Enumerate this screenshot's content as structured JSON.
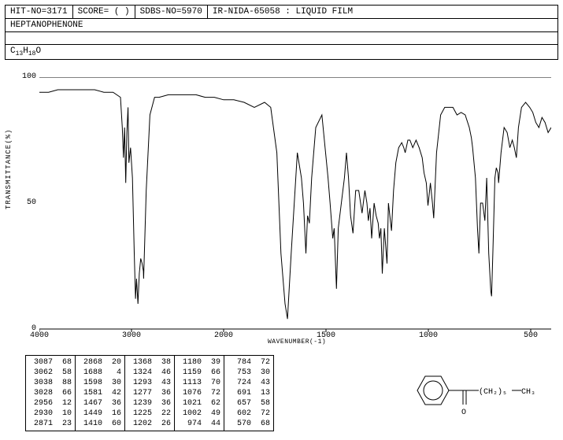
{
  "header": {
    "hit_no": "HIT-NO=3171",
    "score": "SCORE=  (  )",
    "sdbs_no": "SDBS-NO=5970",
    "ir_info": "IR-NIDA-65058 : LIQUID FILM"
  },
  "compound_name": "HEPTANOPHENONE",
  "formula": {
    "c": "13",
    "h": "18",
    "o": ""
  },
  "chart": {
    "type": "line",
    "ylabel": "TRANSMITTANCE(%)",
    "xlabel": "WAVENUMBER(-1)",
    "xlim": [
      4000,
      400
    ],
    "ylim": [
      0,
      100
    ],
    "yticks": [
      0,
      50,
      100
    ],
    "xticks": [
      4000,
      3000,
      2000,
      1500,
      1000,
      500
    ],
    "line_color": "#000000",
    "background_color": "#ffffff",
    "label_fontsize": 9,
    "tick_fontsize": 10,
    "spectrum": [
      [
        4000,
        94
      ],
      [
        3900,
        94
      ],
      [
        3800,
        95
      ],
      [
        3700,
        95
      ],
      [
        3600,
        95
      ],
      [
        3500,
        95
      ],
      [
        3400,
        95
      ],
      [
        3300,
        94
      ],
      [
        3200,
        94
      ],
      [
        3120,
        92
      ],
      [
        3100,
        80
      ],
      [
        3087,
        68
      ],
      [
        3075,
        80
      ],
      [
        3062,
        58
      ],
      [
        3050,
        78
      ],
      [
        3038,
        88
      ],
      [
        3028,
        66
      ],
      [
        3010,
        72
      ],
      [
        2990,
        60
      ],
      [
        2970,
        30
      ],
      [
        2956,
        12
      ],
      [
        2945,
        20
      ],
      [
        2930,
        10
      ],
      [
        2915,
        22
      ],
      [
        2900,
        28
      ],
      [
        2885,
        26
      ],
      [
        2871,
        23
      ],
      [
        2868,
        20
      ],
      [
        2840,
        55
      ],
      [
        2800,
        85
      ],
      [
        2750,
        92
      ],
      [
        2700,
        92
      ],
      [
        2600,
        93
      ],
      [
        2500,
        93
      ],
      [
        2400,
        93
      ],
      [
        2300,
        93
      ],
      [
        2200,
        92
      ],
      [
        2100,
        92
      ],
      [
        2000,
        91
      ],
      [
        1950,
        91
      ],
      [
        1900,
        90
      ],
      [
        1850,
        88
      ],
      [
        1800,
        90
      ],
      [
        1770,
        88
      ],
      [
        1740,
        70
      ],
      [
        1720,
        30
      ],
      [
        1700,
        10
      ],
      [
        1688,
        4
      ],
      [
        1670,
        30
      ],
      [
        1640,
        70
      ],
      [
        1620,
        60
      ],
      [
        1610,
        50
      ],
      [
        1598,
        30
      ],
      [
        1590,
        45
      ],
      [
        1581,
        42
      ],
      [
        1570,
        60
      ],
      [
        1550,
        80
      ],
      [
        1520,
        85
      ],
      [
        1490,
        60
      ],
      [
        1480,
        50
      ],
      [
        1467,
        36
      ],
      [
        1460,
        40
      ],
      [
        1449,
        16
      ],
      [
        1440,
        40
      ],
      [
        1425,
        50
      ],
      [
        1410,
        60
      ],
      [
        1400,
        70
      ],
      [
        1390,
        60
      ],
      [
        1380,
        45
      ],
      [
        1368,
        38
      ],
      [
        1355,
        55
      ],
      [
        1340,
        55
      ],
      [
        1324,
        46
      ],
      [
        1310,
        55
      ],
      [
        1300,
        50
      ],
      [
        1293,
        43
      ],
      [
        1285,
        48
      ],
      [
        1277,
        36
      ],
      [
        1265,
        50
      ],
      [
        1255,
        45
      ],
      [
        1245,
        42
      ],
      [
        1239,
        36
      ],
      [
        1232,
        40
      ],
      [
        1225,
        22
      ],
      [
        1215,
        40
      ],
      [
        1202,
        26
      ],
      [
        1195,
        50
      ],
      [
        1180,
        39
      ],
      [
        1170,
        55
      ],
      [
        1159,
        66
      ],
      [
        1145,
        72
      ],
      [
        1130,
        74
      ],
      [
        1120,
        72
      ],
      [
        1113,
        70
      ],
      [
        1100,
        75
      ],
      [
        1090,
        75
      ],
      [
        1076,
        72
      ],
      [
        1060,
        75
      ],
      [
        1045,
        72
      ],
      [
        1030,
        68
      ],
      [
        1021,
        62
      ],
      [
        1010,
        58
      ],
      [
        1002,
        49
      ],
      [
        990,
        58
      ],
      [
        980,
        50
      ],
      [
        974,
        44
      ],
      [
        960,
        70
      ],
      [
        940,
        85
      ],
      [
        920,
        88
      ],
      [
        900,
        88
      ],
      [
        880,
        88
      ],
      [
        860,
        85
      ],
      [
        840,
        86
      ],
      [
        820,
        85
      ],
      [
        800,
        80
      ],
      [
        790,
        76
      ],
      [
        784,
        72
      ],
      [
        770,
        60
      ],
      [
        760,
        40
      ],
      [
        753,
        30
      ],
      [
        745,
        50
      ],
      [
        735,
        50
      ],
      [
        724,
        43
      ],
      [
        715,
        60
      ],
      [
        705,
        30
      ],
      [
        695,
        15
      ],
      [
        691,
        13
      ],
      [
        685,
        30
      ],
      [
        675,
        60
      ],
      [
        668,
        64
      ],
      [
        660,
        62
      ],
      [
        657,
        58
      ],
      [
        645,
        70
      ],
      [
        630,
        80
      ],
      [
        615,
        78
      ],
      [
        602,
        72
      ],
      [
        590,
        75
      ],
      [
        580,
        72
      ],
      [
        570,
        68
      ],
      [
        560,
        80
      ],
      [
        545,
        88
      ],
      [
        525,
        90
      ],
      [
        505,
        88
      ],
      [
        490,
        86
      ],
      [
        475,
        82
      ],
      [
        460,
        80
      ],
      [
        445,
        84
      ],
      [
        430,
        82
      ],
      [
        415,
        78
      ],
      [
        400,
        80
      ]
    ]
  },
  "peak_table": {
    "columns": [
      [
        [
          3087,
          68
        ],
        [
          3062,
          58
        ],
        [
          3038,
          88
        ],
        [
          3028,
          66
        ],
        [
          2956,
          12
        ],
        [
          2930,
          10
        ],
        [
          2871,
          23
        ]
      ],
      [
        [
          2868,
          20
        ],
        [
          1688,
          4
        ],
        [
          1598,
          30
        ],
        [
          1581,
          42
        ],
        [
          1467,
          36
        ],
        [
          1449,
          16
        ],
        [
          1410,
          60
        ]
      ],
      [
        [
          1368,
          38
        ],
        [
          1324,
          46
        ],
        [
          1293,
          43
        ],
        [
          1277,
          36
        ],
        [
          1239,
          36
        ],
        [
          1225,
          22
        ],
        [
          1202,
          26
        ]
      ],
      [
        [
          1180,
          39
        ],
        [
          1159,
          66
        ],
        [
          1113,
          70
        ],
        [
          1076,
          72
        ],
        [
          1021,
          62
        ],
        [
          1002,
          49
        ],
        [
          974,
          44
        ]
      ],
      [
        [
          784,
          72
        ],
        [
          753,
          30
        ],
        [
          724,
          43
        ],
        [
          691,
          13
        ],
        [
          657,
          58
        ],
        [
          602,
          72
        ],
        [
          570,
          68
        ]
      ]
    ]
  },
  "structure": {
    "text_ch2": "(CH₂)₅",
    "text_ch3": "CH₃",
    "text_o": "O"
  }
}
